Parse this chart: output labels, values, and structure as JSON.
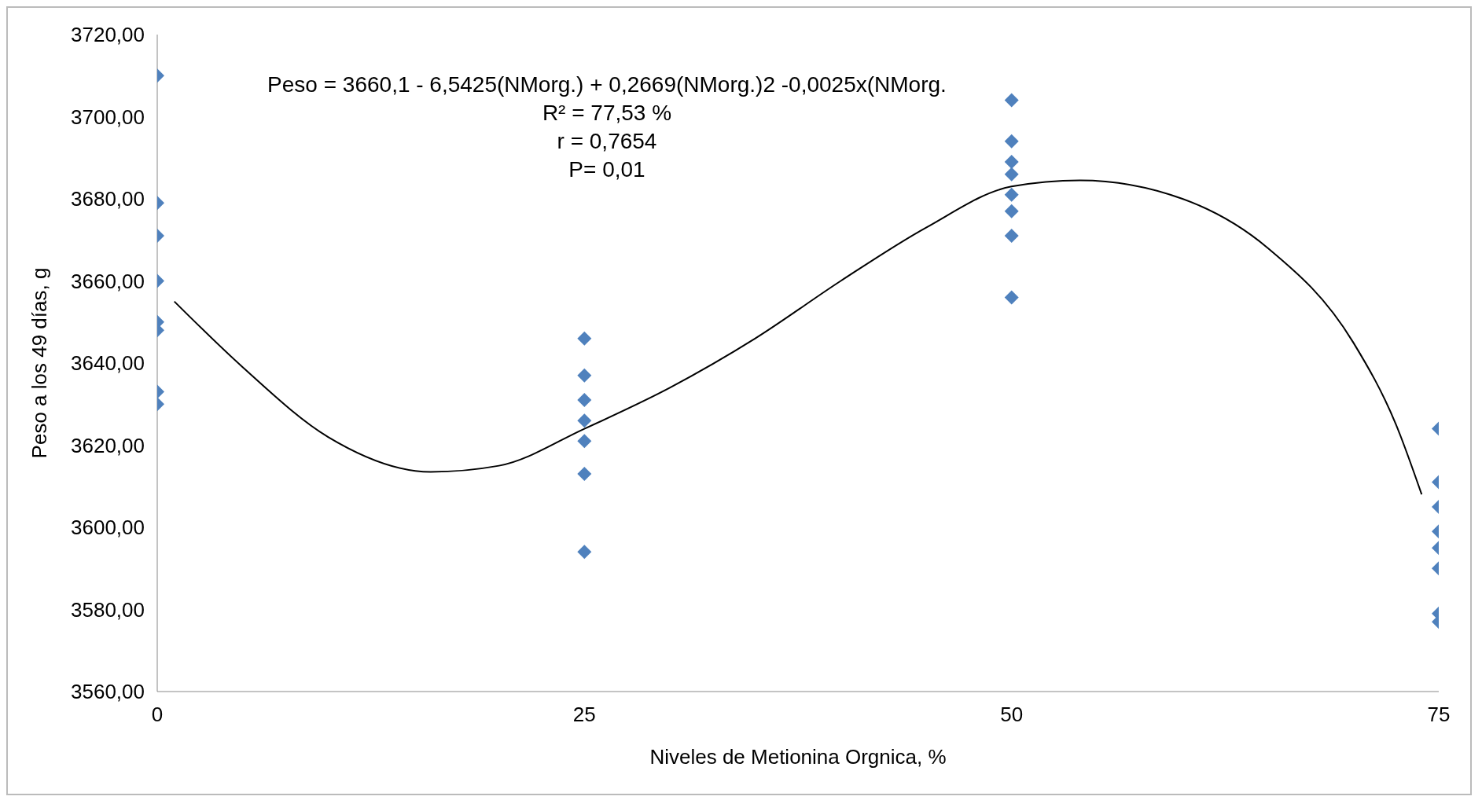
{
  "chart_data": {
    "type": "scatter",
    "xlabel": "Niveles de Metionina Orgnica, %",
    "ylabel": "Peso a los 49 días, g",
    "annotations": [
      "Peso  = 3660,1 - 6,5425(NMorg.) + 0,2669(NMorg.)2 -0,0025x(NMorg.",
      "R² = 77,53 %",
      "r = 0,7654",
      "P= 0,01"
    ],
    "series": [
      {
        "type": "scatter",
        "color": "#4f81bd",
        "marker": "diamond",
        "x": [
          0,
          0,
          0,
          0,
          0,
          0,
          0,
          0,
          25,
          25,
          25,
          25,
          25,
          25,
          25,
          50,
          50,
          50,
          50,
          50,
          50,
          50,
          50,
          75,
          75,
          75,
          75,
          75,
          75,
          75,
          75
        ],
        "values": [
          3710,
          3679,
          3671,
          3660,
          3650,
          3648,
          3633,
          3630,
          3646,
          3637,
          3631,
          3626,
          3621,
          3613,
          3594,
          3704,
          3694,
          3689,
          3686,
          3681,
          3677,
          3671,
          3656,
          3624,
          3611,
          3605,
          3599,
          3595,
          3590,
          3579,
          3577
        ]
      },
      {
        "type": "line",
        "color": "#000000",
        "marker": "none",
        "line_style": "solid",
        "x": [
          1,
          5,
          10,
          16,
          20,
          25,
          30,
          35,
          40,
          45,
          50,
          54,
          60,
          65,
          70,
          72.5,
          74
        ],
        "values": [
          3655,
          3639,
          3622,
          3613.5,
          3615,
          3624,
          3634,
          3646,
          3660,
          3673,
          3683,
          3684.5,
          3680,
          3668,
          3645,
          3625,
          3608
        ]
      }
    ],
    "xlim": [
      0,
      75
    ],
    "xticks": [
      0,
      25,
      50,
      75
    ],
    "ylim": [
      3560,
      3720
    ],
    "yticks": [
      {
        "value": 3560,
        "label": "3560,00"
      },
      {
        "value": 3580,
        "label": "3580,00"
      },
      {
        "value": 3600,
        "label": "3600,00"
      },
      {
        "value": 3620,
        "label": "3620,00"
      },
      {
        "value": 3640,
        "label": "3640,00"
      },
      {
        "value": 3660,
        "label": "3660,00"
      },
      {
        "value": 3680,
        "label": "3680,00"
      },
      {
        "value": 3700,
        "label": "3700,00"
      },
      {
        "value": 3720,
        "label": "3720,00"
      }
    ],
    "grid": false
  }
}
